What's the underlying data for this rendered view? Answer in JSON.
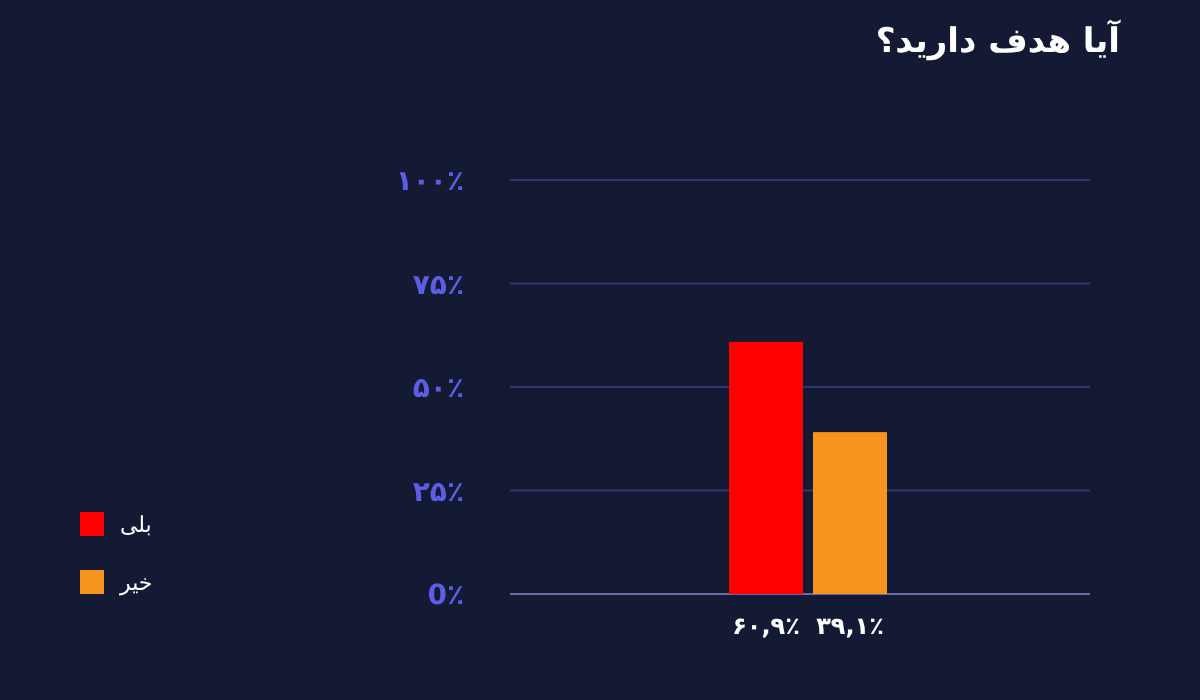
{
  "chart_data": {
    "type": "bar",
    "title": "آیا هدف دارید؟",
    "categories": [
      null,
      null
    ],
    "series": [
      {
        "name": "بلی",
        "color": "#ff0000",
        "values": [
          60.9,
          null
        ],
        "value_labels": [
          "۶۰,۹٪",
          null
        ]
      },
      {
        "name": "خیر",
        "color": "#f7941d",
        "values": [
          null,
          39.1
        ],
        "value_labels": [
          null,
          "۳۹,۱٪"
        ]
      }
    ],
    "ylim": [
      0,
      100
    ],
    "yticks": [
      {
        "value": 0,
        "label": "0٪"
      },
      {
        "value": 25,
        "label": "۲۵٪"
      },
      {
        "value": 50,
        "label": "۵۰٪"
      },
      {
        "value": 75,
        "label": "۷۵٪"
      },
      {
        "value": 100,
        "label": "۱۰۰٪"
      }
    ],
    "grid": "y",
    "legend": "left"
  }
}
